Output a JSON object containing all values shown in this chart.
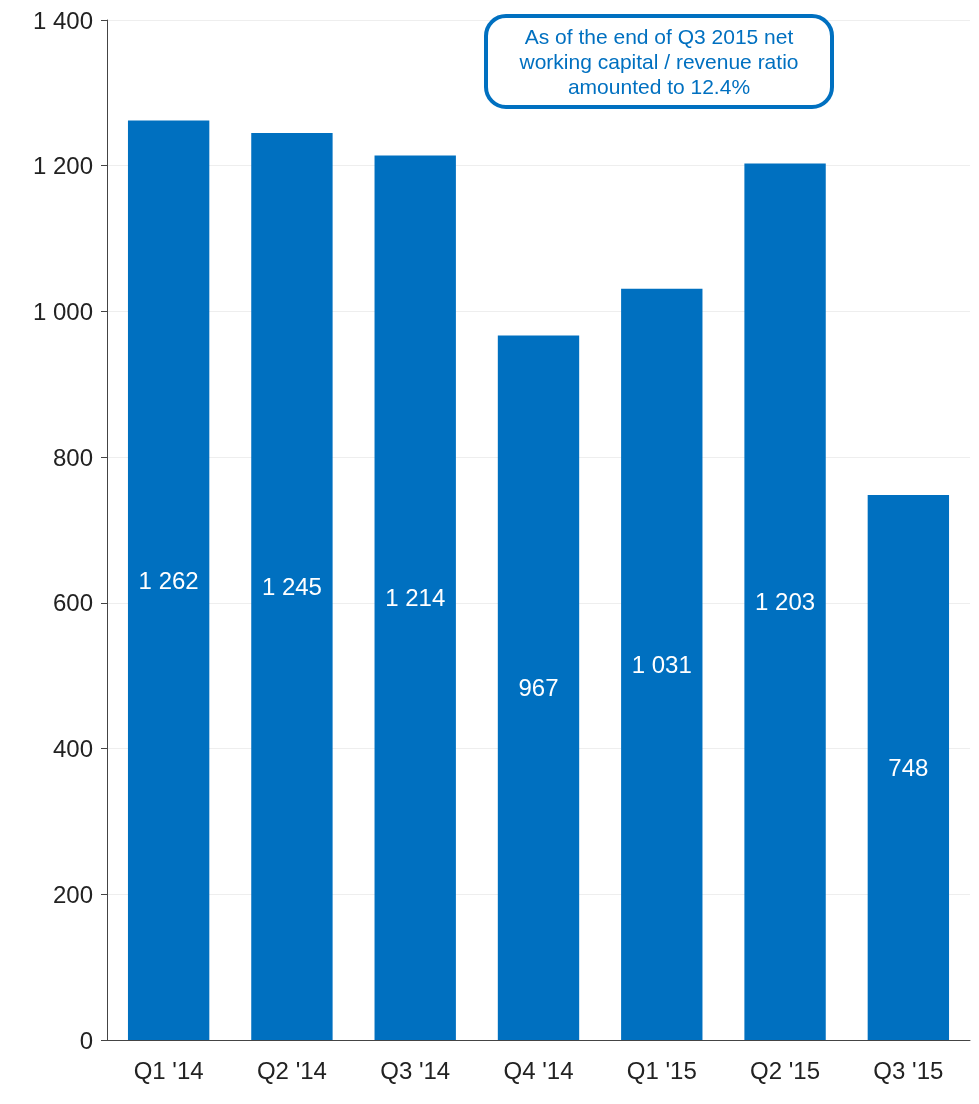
{
  "chart_data": {
    "type": "bar",
    "categories": [
      "Q1 '14",
      "Q2 '14",
      "Q3 '14",
      "Q4 '14",
      "Q1 '15",
      "Q2 '15",
      "Q3 '15"
    ],
    "values": [
      1262,
      1245,
      1214,
      967,
      1031,
      1203,
      748
    ],
    "value_labels": [
      "1 262",
      "1 245",
      "1 214",
      "967",
      "1 031",
      "1 203",
      "748"
    ],
    "color": "#0070c0",
    "ylim": [
      0,
      1400
    ],
    "yticks": [
      0,
      200,
      400,
      600,
      800,
      {
        "value": 1000,
        "label": "1 000"
      },
      {
        "value": 1200,
        "label": "1 200"
      },
      {
        "value": 1400,
        "label": "1 400"
      }
    ],
    "grid": "y",
    "annotations": [
      "As of the end of Q3 2015 net working capital / revenue ratio amounted to 12.4%"
    ]
  }
}
